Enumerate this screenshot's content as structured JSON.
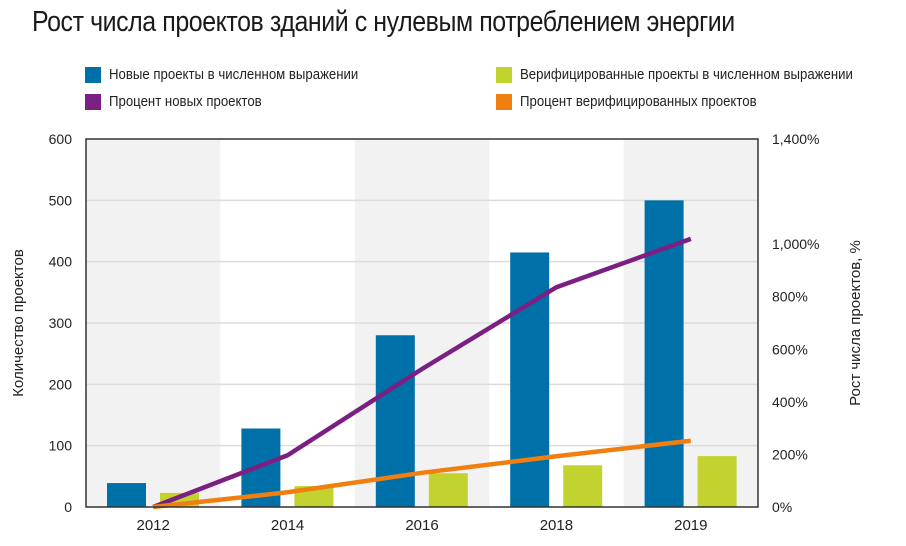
{
  "chart_data": {
    "type": "bar+line",
    "title": "Рост числа проектов зданий с нулевым потреблением энергии",
    "categories": [
      "2012",
      "2014",
      "2016",
      "2018",
      "2019"
    ],
    "series": [
      {
        "name": "Новые проекты в численном выражении",
        "type": "bar",
        "axis": "left",
        "color": "#0070a8",
        "values": [
          39,
          128,
          280,
          415,
          500
        ]
      },
      {
        "name": "Верифицированные проекты в численном выражении",
        "type": "bar",
        "axis": "left",
        "color": "#c2d22e",
        "values": [
          23,
          34,
          55,
          68,
          83
        ]
      },
      {
        "name": "Процент новых проектов",
        "type": "line",
        "axis": "right",
        "color": "#7b1f82",
        "values": [
          0,
          197,
          525,
          836,
          1020
        ]
      },
      {
        "name": "Процент верифицированных проектов",
        "type": "line",
        "axis": "right",
        "color": "#f07f0f",
        "values": [
          0,
          56,
          130,
          193,
          252
        ]
      }
    ],
    "ylabel": "Количество проектов",
    "ylim": [
      0,
      600
    ],
    "yticks": [
      "0",
      "100",
      "200",
      "300",
      "400",
      "500",
      "600"
    ],
    "y2label": "Рост числа проектов, %",
    "y2lim": [
      0,
      1400
    ],
    "y2ticks": [
      "0%",
      "200%",
      "400%",
      "600%",
      "800%",
      "1,000%",
      "1,400%"
    ],
    "y2tickvalues": [
      0,
      200,
      400,
      600,
      800,
      1000,
      1400
    ],
    "grid": true,
    "legend_position": "top"
  }
}
